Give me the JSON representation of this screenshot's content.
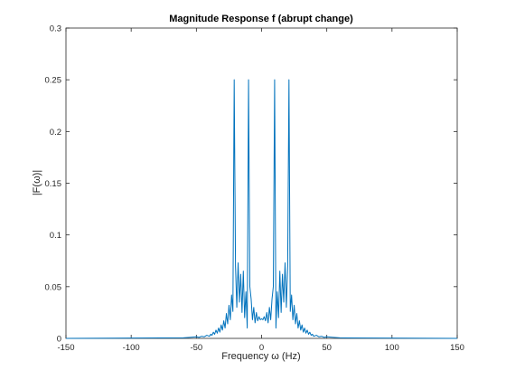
{
  "chart_data": {
    "type": "line",
    "title": "Magnitude Response f (abrupt change)",
    "xlabel": "Frequency ω (Hz)",
    "ylabel": "|F(ω)|",
    "xlim": [
      -150,
      150
    ],
    "ylim": [
      0,
      0.3
    ],
    "xticks": [
      -150,
      -100,
      -50,
      0,
      50,
      100,
      150
    ],
    "yticks": [
      0,
      0.05,
      0.1,
      0.15,
      0.2,
      0.25,
      0.3
    ],
    "xtick_labels": [
      "-150",
      "-100",
      "-50",
      "0",
      "50",
      "100",
      "150"
    ],
    "ytick_labels": [
      "0",
      "0.05",
      "0.1",
      "0.15",
      "0.2",
      "0.25",
      "0.3"
    ],
    "grid": false,
    "series": [
      {
        "color": "#0072bd",
        "x": [
          -150,
          -60,
          -55,
          -50,
          -48,
          -46,
          -44,
          -42,
          -40,
          -39,
          -38,
          -37,
          -36,
          -35,
          -34,
          -33,
          -32,
          -31,
          -30,
          -29,
          -28,
          -27,
          -26,
          -25,
          -24,
          -23,
          -22,
          -21,
          -20,
          -19,
          -18,
          -17,
          -16,
          -15,
          -14,
          -13,
          -12,
          -11,
          -10,
          -9,
          -8,
          -7,
          -6,
          -5,
          -4,
          -3,
          -2,
          -1,
          0,
          1,
          2,
          3,
          4,
          5,
          6,
          7,
          8,
          9,
          10,
          11,
          12,
          13,
          14,
          15,
          16,
          17,
          18,
          19,
          20,
          21,
          22,
          23,
          24,
          25,
          26,
          27,
          28,
          29,
          30,
          31,
          32,
          33,
          34,
          35,
          36,
          37,
          38,
          39,
          40,
          42,
          44,
          46,
          48,
          50,
          55,
          60,
          150
        ],
        "y": [
          0,
          0.0005,
          0.001,
          0.0015,
          0.001,
          0.002,
          0.0015,
          0.003,
          0.002,
          0.004,
          0.003,
          0.006,
          0.004,
          0.008,
          0.005,
          0.01,
          0.006,
          0.013,
          0.008,
          0.017,
          0.01,
          0.024,
          0.014,
          0.032,
          0.018,
          0.042,
          0.026,
          0.25,
          0.07,
          0.03,
          0.073,
          0.035,
          0.062,
          0.025,
          0.065,
          0.02,
          0.045,
          0.01,
          0.25,
          0.05,
          0.038,
          0.018,
          0.03,
          0.015,
          0.025,
          0.017,
          0.021,
          0.018,
          0.019,
          0.018,
          0.021,
          0.017,
          0.025,
          0.015,
          0.03,
          0.018,
          0.038,
          0.05,
          0.25,
          0.01,
          0.045,
          0.02,
          0.065,
          0.025,
          0.062,
          0.035,
          0.073,
          0.03,
          0.07,
          0.25,
          0.026,
          0.042,
          0.018,
          0.032,
          0.014,
          0.024,
          0.01,
          0.017,
          0.008,
          0.013,
          0.006,
          0.01,
          0.005,
          0.008,
          0.004,
          0.006,
          0.003,
          0.004,
          0.002,
          0.003,
          0.0015,
          0.002,
          0.001,
          0.0015,
          0.001,
          0.0005,
          0
        ]
      }
    ]
  }
}
